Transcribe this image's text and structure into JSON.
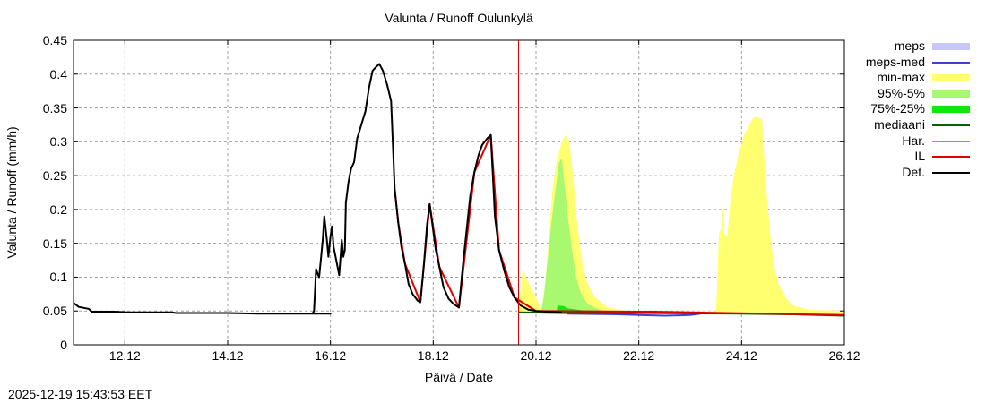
{
  "chart_data": {
    "type": "area",
    "title": "Valunta / Runoff  Oulunkylä",
    "xlabel": "Päivä / Date",
    "ylabel": "Valunta / Runoff (mm/h)",
    "ylim": [
      0,
      0.45
    ],
    "xlim_days": [
      0,
      15.0
    ],
    "x_origin": "11.12 00:00",
    "x_unit": "days since 11.12",
    "grid": true,
    "yticks": [
      "0",
      "0.05",
      "0.1",
      "0.15",
      "0.2",
      "0.25",
      "0.3",
      "0.35",
      "0.4",
      "0.45"
    ],
    "xticks": [
      {
        "label": "12.12",
        "day": 1
      },
      {
        "label": "14.12",
        "day": 3
      },
      {
        "label": "16.12",
        "day": 5
      },
      {
        "label": "18.12",
        "day": 7
      },
      {
        "label": "20.12",
        "day": 9
      },
      {
        "label": "22.12",
        "day": 11
      },
      {
        "label": "24.12",
        "day": 13
      },
      {
        "label": "26.12",
        "day": 15
      }
    ],
    "forecast_start_day": 8.66,
    "legend_position": "right",
    "legend": [
      {
        "label": "meps",
        "kind": "fill",
        "color": "#c8c8f8"
      },
      {
        "label": "meps-med",
        "kind": "line",
        "color": "#4040d0"
      },
      {
        "label": "min-max",
        "kind": "fill",
        "color": "#ffff70"
      },
      {
        "label": "95%-5%",
        "kind": "fill",
        "color": "#a8f870"
      },
      {
        "label": "75%-25%",
        "kind": "fill",
        "color": "#10e810"
      },
      {
        "label": "mediaani",
        "kind": "line",
        "color": "#006400"
      },
      {
        "label": "Har.",
        "kind": "line",
        "color": "#ff8000"
      },
      {
        "label": "IL",
        "kind": "line",
        "color": "#e00000"
      },
      {
        "label": "Det.",
        "kind": "line",
        "color": "#000000"
      }
    ],
    "series": [
      {
        "name": "Det.",
        "color": "#000000",
        "points": [
          [
            0,
            0.062
          ],
          [
            0.1,
            0.056
          ],
          [
            0.3,
            0.053
          ],
          [
            0.35,
            0.049
          ],
          [
            0.8,
            0.049
          ],
          [
            1.05,
            0.048
          ],
          [
            1.9,
            0.048
          ],
          [
            2.0,
            0.047
          ],
          [
            3.0,
            0.047
          ],
          [
            3.6,
            0.046
          ],
          [
            5.0,
            0.046
          ],
          [
            4.55,
            0.046
          ],
          [
            4.65,
            0.046
          ],
          [
            4.68,
            0.05
          ],
          [
            4.72,
            0.112
          ],
          [
            4.75,
            0.105
          ],
          [
            4.78,
            0.1
          ],
          [
            4.85,
            0.155
          ],
          [
            4.88,
            0.19
          ],
          [
            4.93,
            0.155
          ],
          [
            4.96,
            0.13
          ],
          [
            5.0,
            0.16
          ],
          [
            5.03,
            0.175
          ],
          [
            5.06,
            0.145
          ],
          [
            5.1,
            0.13
          ],
          [
            5.17,
            0.103
          ],
          [
            5.22,
            0.155
          ],
          [
            5.25,
            0.13
          ],
          [
            5.28,
            0.14
          ],
          [
            5.3,
            0.21
          ],
          [
            5.35,
            0.24
          ],
          [
            5.4,
            0.26
          ],
          [
            5.46,
            0.27
          ],
          [
            5.52,
            0.305
          ],
          [
            5.6,
            0.325
          ],
          [
            5.68,
            0.345
          ],
          [
            5.75,
            0.38
          ],
          [
            5.82,
            0.405
          ],
          [
            5.88,
            0.41
          ],
          [
            5.95,
            0.415
          ],
          [
            6.02,
            0.405
          ],
          [
            6.1,
            0.385
          ],
          [
            6.18,
            0.36
          ],
          [
            6.25,
            0.23
          ],
          [
            6.32,
            0.18
          ],
          [
            6.38,
            0.145
          ],
          [
            6.45,
            0.12
          ],
          [
            6.52,
            0.09
          ],
          [
            6.6,
            0.075
          ],
          [
            6.7,
            0.065
          ],
          [
            6.75,
            0.063
          ],
          [
            6.82,
            0.12
          ],
          [
            6.88,
            0.178
          ],
          [
            6.93,
            0.208
          ],
          [
            6.98,
            0.18
          ],
          [
            7.05,
            0.14
          ],
          [
            7.12,
            0.115
          ],
          [
            7.2,
            0.085
          ],
          [
            7.3,
            0.068
          ],
          [
            7.4,
            0.06
          ],
          [
            7.5,
            0.055
          ],
          [
            7.58,
            0.12
          ],
          [
            7.65,
            0.17
          ],
          [
            7.72,
            0.22
          ],
          [
            7.8,
            0.255
          ],
          [
            7.88,
            0.28
          ],
          [
            7.95,
            0.295
          ],
          [
            8.05,
            0.305
          ],
          [
            8.12,
            0.31
          ],
          [
            8.2,
            0.19
          ],
          [
            8.28,
            0.14
          ],
          [
            8.38,
            0.11
          ],
          [
            8.48,
            0.085
          ],
          [
            8.58,
            0.07
          ],
          [
            8.7,
            0.058
          ],
          [
            8.85,
            0.052
          ],
          [
            9.0,
            0.05
          ],
          [
            9.2,
            0.049
          ],
          [
            9.5,
            0.048
          ]
        ]
      },
      {
        "name": "IL",
        "color": "#e00000",
        "points": [
          [
            6.25,
            0.23
          ],
          [
            6.32,
            0.18
          ],
          [
            6.45,
            0.12
          ],
          [
            6.75,
            0.063
          ],
          [
            6.93,
            0.208
          ],
          [
            7.12,
            0.115
          ],
          [
            7.5,
            0.055
          ],
          [
            7.8,
            0.255
          ],
          [
            8.12,
            0.31
          ],
          [
            8.28,
            0.14
          ],
          [
            8.58,
            0.07
          ],
          [
            9.0,
            0.05
          ],
          [
            11.0,
            0.049
          ],
          [
            11.3,
            0.049
          ],
          [
            12.0,
            0.048
          ],
          [
            12.7,
            0.047
          ],
          [
            15.0,
            0.044
          ]
        ]
      },
      {
        "name": "mediaani",
        "color": "#006400",
        "points": [
          [
            8.66,
            0.048
          ],
          [
            9.5,
            0.047
          ],
          [
            11.0,
            0.047
          ],
          [
            13.0,
            0.046
          ],
          [
            14.0,
            0.045
          ],
          [
            15.0,
            0.043
          ]
        ]
      },
      {
        "name": "meps-med",
        "color": "#4040d0",
        "points": [
          [
            9.6,
            0.046
          ],
          [
            10.6,
            0.045
          ],
          [
            11.0,
            0.044
          ],
          [
            11.5,
            0.043
          ],
          [
            12.0,
            0.044
          ],
          [
            12.2,
            0.046
          ]
        ]
      },
      {
        "name": "min-max",
        "kind": "band",
        "color": "#ffff70",
        "upper": [
          [
            8.66,
            0.05
          ],
          [
            8.7,
            0.08
          ],
          [
            8.74,
            0.115
          ],
          [
            8.8,
            0.1
          ],
          [
            8.9,
            0.085
          ],
          [
            9.05,
            0.062
          ],
          [
            9.1,
            0.05
          ],
          [
            9.18,
            0.09
          ],
          [
            9.25,
            0.16
          ],
          [
            9.32,
            0.23
          ],
          [
            9.4,
            0.27
          ],
          [
            9.5,
            0.3
          ],
          [
            9.58,
            0.31
          ],
          [
            9.65,
            0.3
          ],
          [
            9.72,
            0.25
          ],
          [
            9.8,
            0.18
          ],
          [
            9.9,
            0.12
          ],
          [
            10.0,
            0.09
          ],
          [
            10.15,
            0.07
          ],
          [
            10.4,
            0.055
          ],
          [
            10.8,
            0.05
          ],
          [
            12.5,
            0.05
          ],
          [
            12.52,
            0.08
          ],
          [
            12.56,
            0.165
          ],
          [
            12.6,
            0.17
          ],
          [
            12.64,
            0.205
          ],
          [
            12.66,
            0.165
          ],
          [
            12.72,
            0.16
          ],
          [
            12.78,
            0.21
          ],
          [
            12.85,
            0.25
          ],
          [
            12.95,
            0.285
          ],
          [
            13.05,
            0.31
          ],
          [
            13.15,
            0.325
          ],
          [
            13.22,
            0.335
          ],
          [
            13.3,
            0.337
          ],
          [
            13.4,
            0.332
          ],
          [
            13.42,
            0.3
          ],
          [
            13.48,
            0.23
          ],
          [
            13.55,
            0.17
          ],
          [
            13.62,
            0.12
          ],
          [
            13.72,
            0.09
          ],
          [
            13.85,
            0.07
          ],
          [
            14.0,
            0.058
          ],
          [
            14.3,
            0.052
          ],
          [
            15.0,
            0.05
          ]
        ],
        "lower": [
          [
            8.66,
            0.048
          ],
          [
            15.0,
            0.045
          ]
        ]
      },
      {
        "name": "95%-5%",
        "kind": "band",
        "color": "#a8f870",
        "upper": [
          [
            9.1,
            0.05
          ],
          [
            9.15,
            0.07
          ],
          [
            9.22,
            0.12
          ],
          [
            9.3,
            0.18
          ],
          [
            9.38,
            0.23
          ],
          [
            9.45,
            0.27
          ],
          [
            9.5,
            0.275
          ],
          [
            9.55,
            0.24
          ],
          [
            9.62,
            0.19
          ],
          [
            9.7,
            0.14
          ],
          [
            9.78,
            0.1
          ],
          [
            9.88,
            0.075
          ],
          [
            10.0,
            0.06
          ],
          [
            10.3,
            0.05
          ],
          [
            10.6,
            0.049
          ]
        ],
        "lower": [
          [
            9.1,
            0.048
          ],
          [
            10.6,
            0.047
          ]
        ]
      },
      {
        "name": "75%-25%",
        "kind": "band",
        "color": "#10e810",
        "upper": [
          [
            9.4,
            0.049
          ],
          [
            9.42,
            0.058
          ],
          [
            9.55,
            0.057
          ],
          [
            9.6,
            0.054
          ],
          [
            9.8,
            0.052
          ],
          [
            10.0,
            0.05
          ]
        ],
        "lower": [
          [
            9.4,
            0.048
          ],
          [
            10.0,
            0.048
          ]
        ]
      }
    ]
  },
  "page": {
    "title": "Valunta / Runoff  Oulunkylä",
    "xlabel": "Päivä / Date",
    "ylabel": "Valunta / Runoff (mm/h)",
    "timestamp": "2025-12-19 15:43:53 EET"
  },
  "legend": {
    "items": [
      {
        "label": "meps"
      },
      {
        "label": "meps-med"
      },
      {
        "label": "min-max"
      },
      {
        "label": "95%-5%"
      },
      {
        "label": "75%-25%"
      },
      {
        "label": "mediaani"
      },
      {
        "label": "Har."
      },
      {
        "label": "IL"
      },
      {
        "label": "Det."
      }
    ]
  },
  "axes": {
    "yticks": [
      "0",
      "0.05",
      "0.1",
      "0.15",
      "0.2",
      "0.25",
      "0.3",
      "0.35",
      "0.4",
      "0.45"
    ],
    "xticks": [
      "12.12",
      "14.12",
      "16.12",
      "18.12",
      "20.12",
      "22.12",
      "24.12",
      "26.12"
    ]
  }
}
